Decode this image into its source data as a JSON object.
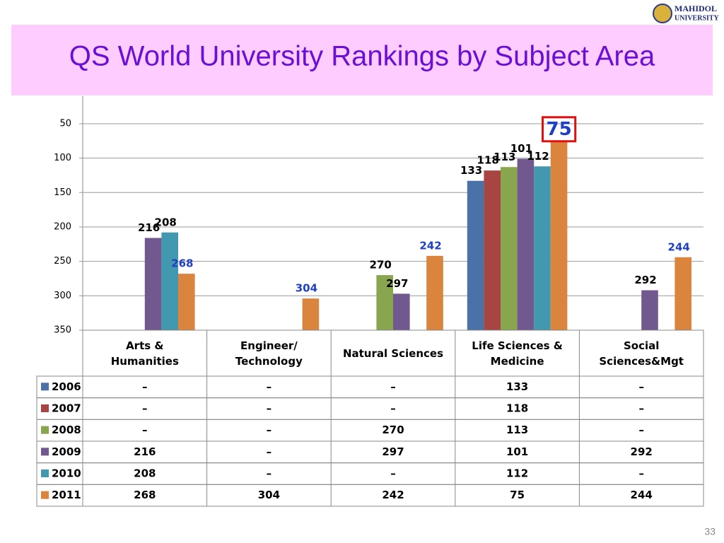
{
  "chart_data": {
    "type": "bar",
    "title": "QS World University Rankings by Subject Area",
    "logo": [
      "MAHIDOL",
      "UNIVERSITY"
    ],
    "page_number": "33",
    "categories": [
      "Arts &\nHumanities",
      "Engineer/\nTechnology",
      "Natural Sciences",
      "Life Sciences &\nMedicine",
      "Social\nSciences&Mgt"
    ],
    "series": [
      {
        "name": "2006",
        "color": "#4a72a8",
        "label_color": "#000000",
        "values": [
          null,
          null,
          null,
          133,
          null
        ]
      },
      {
        "name": "2007",
        "color": "#a84442",
        "label_color": "#000000",
        "values": [
          null,
          null,
          null,
          118,
          null
        ]
      },
      {
        "name": "2008",
        "color": "#89a54e",
        "label_color": "#000000",
        "values": [
          null,
          null,
          270,
          113,
          null
        ]
      },
      {
        "name": "2009",
        "color": "#71588f",
        "label_color": "#000000",
        "values": [
          216,
          null,
          297,
          101,
          292
        ]
      },
      {
        "name": "2010",
        "color": "#4198af",
        "label_color": "#000000",
        "values": [
          208,
          null,
          null,
          112,
          null
        ]
      },
      {
        "name": "2011",
        "color": "#db843d",
        "label_color": "#1f3fc4",
        "values": [
          268,
          304,
          242,
          75,
          244
        ]
      }
    ],
    "missing_label": "–",
    "highlight": {
      "series": 5,
      "index": 3,
      "color": "#e01010"
    },
    "ylim": [
      350,
      10
    ],
    "yticks": [
      50,
      100,
      150,
      200,
      250,
      300,
      350
    ],
    "grid": true
  }
}
